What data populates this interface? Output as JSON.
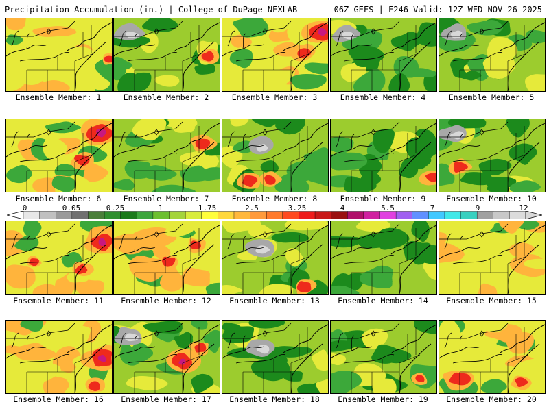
{
  "header": {
    "title": "Precipitation Accumulation (in.) | College of DuPage NEXLAB",
    "run_info": "06Z GEFS | F246 Valid: 12Z WED NOV 26 2025"
  },
  "members": [
    {
      "label": "Ensemble Member: 1",
      "style": "wet",
      "hot": [
        [
          150,
          60,
          10
        ]
      ]
    },
    {
      "label": "Ensemble Member: 2",
      "style": "gray-nw",
      "hot": [
        [
          138,
          55,
          12
        ]
      ]
    },
    {
      "label": "Ensemble Member: 3",
      "style": "wet",
      "hot": [
        [
          145,
          20,
          22
        ],
        [
          120,
          50,
          14
        ]
      ]
    },
    {
      "label": "Ensemble Member: 4",
      "style": "gray-nw",
      "hot": []
    },
    {
      "label": "Ensemble Member: 5",
      "style": "gray-nw",
      "hot": []
    },
    {
      "label": "Ensemble Member: 6",
      "style": "wet",
      "hot": [
        [
          138,
          20,
          24
        ],
        [
          110,
          60,
          14
        ]
      ]
    },
    {
      "label": "Ensemble Member: 7",
      "style": "green",
      "hot": [
        [
          130,
          35,
          14
        ]
      ]
    },
    {
      "label": "Ensemble Member: 8",
      "style": "gray",
      "hot": [
        [
          40,
          90,
          14
        ],
        [
          70,
          88,
          12
        ]
      ]
    },
    {
      "label": "Ensemble Member: 9",
      "style": "green",
      "hot": [
        [
          148,
          85,
          14
        ]
      ]
    },
    {
      "label": "Ensemble Member: 10",
      "style": "gray-nw",
      "hot": [
        [
          30,
          70,
          14
        ]
      ]
    },
    {
      "label": "Ensemble Member: 11",
      "style": "wet",
      "hot": [
        [
          140,
          30,
          22
        ],
        [
          110,
          70,
          12
        ],
        [
          40,
          60,
          10
        ]
      ]
    },
    {
      "label": "Ensemble Member: 12",
      "style": "wet",
      "hot": [
        [
          80,
          60,
          14
        ],
        [
          120,
          35,
          12
        ]
      ]
    },
    {
      "label": "Ensemble Member: 13",
      "style": "gray",
      "hot": [
        [
          120,
          95,
          14
        ]
      ]
    },
    {
      "label": "Ensemble Member: 14",
      "style": "green",
      "hot": []
    },
    {
      "label": "Ensemble Member: 15",
      "style": "wet",
      "hot": []
    },
    {
      "label": "Ensemble Member: 16",
      "style": "wet",
      "hot": [
        [
          140,
          55,
          22
        ],
        [
          130,
          95,
          12
        ]
      ]
    },
    {
      "label": "Ensemble Member: 17",
      "style": "gray-nw",
      "hot": [
        [
          100,
          60,
          20
        ],
        [
          125,
          40,
          12
        ]
      ]
    },
    {
      "label": "Ensemble Member: 18",
      "style": "gray",
      "hot": []
    },
    {
      "label": "Ensemble Member: 19",
      "style": "green",
      "hot": [
        [
          130,
          85,
          10
        ]
      ]
    },
    {
      "label": "Ensemble Member: 20",
      "style": "wet",
      "hot": [
        [
          30,
          85,
          18
        ],
        [
          120,
          90,
          12
        ]
      ]
    }
  ],
  "colorbar": {
    "labels": [
      "0",
      "0.05",
      "0.25",
      "1",
      "1.75",
      "2.5",
      "3.25",
      "4",
      "5.5",
      "7",
      "9",
      "12"
    ],
    "colors": [
      "#e8e8e8",
      "#c0c0c0",
      "#9a9a9a",
      "#707070",
      "#4a7f3a",
      "#2f8f2f",
      "#1a7a1a",
      "#3ca63c",
      "#6cc030",
      "#a4d43a",
      "#d8ec3c",
      "#ffff3c",
      "#ffd83c",
      "#ffb83c",
      "#ff9a3c",
      "#ff7a2c",
      "#ff4a20",
      "#ee1c1c",
      "#c81818",
      "#9a1010",
      "#b0106a",
      "#d020a0",
      "#e040e0",
      "#a060f0",
      "#6090ff",
      "#40c8ff",
      "#40e8e8",
      "#38d0c0",
      "#a0a0a0",
      "#c8c8c8",
      "#dcdcdc"
    ]
  },
  "palette": {
    "base": "#9ccc2e",
    "dark_green": "#1c8a1c",
    "green": "#3ca83a",
    "yellow": "#e6ea3a",
    "orange": "#ffb43c",
    "red": "#ee2a1c",
    "magenta": "#c81880",
    "gray": "#a8a8a8",
    "light_gray": "#d8d8d8",
    "lines": "#000000"
  }
}
